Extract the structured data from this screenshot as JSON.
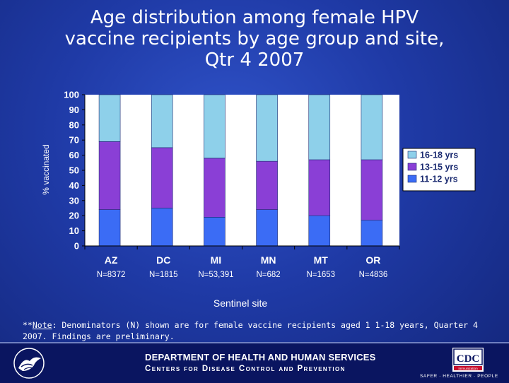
{
  "title": {
    "line1": "Age distribution among female HPV",
    "line2": "vaccine recipients by age group and site,",
    "line3": "Qtr 4 2007"
  },
  "chart_data": {
    "type": "stacked-bar",
    "title": "Age distribution among female HPV vaccine recipients by age group and site, Qtr 4 2007",
    "categories": [
      "AZ",
      "DC",
      "MI",
      "MN",
      "MT",
      "OR"
    ],
    "n_labels": [
      "N=8372",
      "N=1815",
      "N=53,391",
      "N=682",
      "N=1653",
      "N=4836"
    ],
    "series": [
      {
        "name": "11-12 yrs",
        "color": "#3b6cf5",
        "values": [
          24,
          25,
          19,
          24,
          20,
          17
        ]
      },
      {
        "name": "13-15 yrs",
        "color": "#8a3fd6",
        "values": [
          45,
          40,
          39,
          32,
          37,
          40
        ]
      },
      {
        "name": "16-18 yrs",
        "color": "#8ed0ea",
        "values": [
          31,
          35,
          42,
          44,
          43,
          43
        ]
      }
    ],
    "legend_order": [
      "16-18 yrs",
      "13-15 yrs",
      "11-12 yrs"
    ],
    "legend_position": "right",
    "ylabel": "% vaccinated",
    "xlabel": "Sentinel site",
    "ylim": [
      0,
      100
    ],
    "yticks": [
      0,
      10,
      20,
      30,
      40,
      50,
      60,
      70,
      80,
      90,
      100
    ]
  },
  "note": {
    "prefix": "**",
    "label": "Note",
    "text": ": Denominators (N) shown are for female vaccine recipients aged 1 1-18 years, Quarter 4 2007. Findings are preliminary."
  },
  "footer": {
    "dept": "DEPARTMENT OF HEALTH AND HUMAN SERVICES",
    "centers": "Centers for Disease Control and Prevention",
    "cdc_logo_text": "CDC",
    "cdc_badge_text": "Immunization",
    "tagline": "SAFER · HEALTHIER · PEOPLE"
  }
}
